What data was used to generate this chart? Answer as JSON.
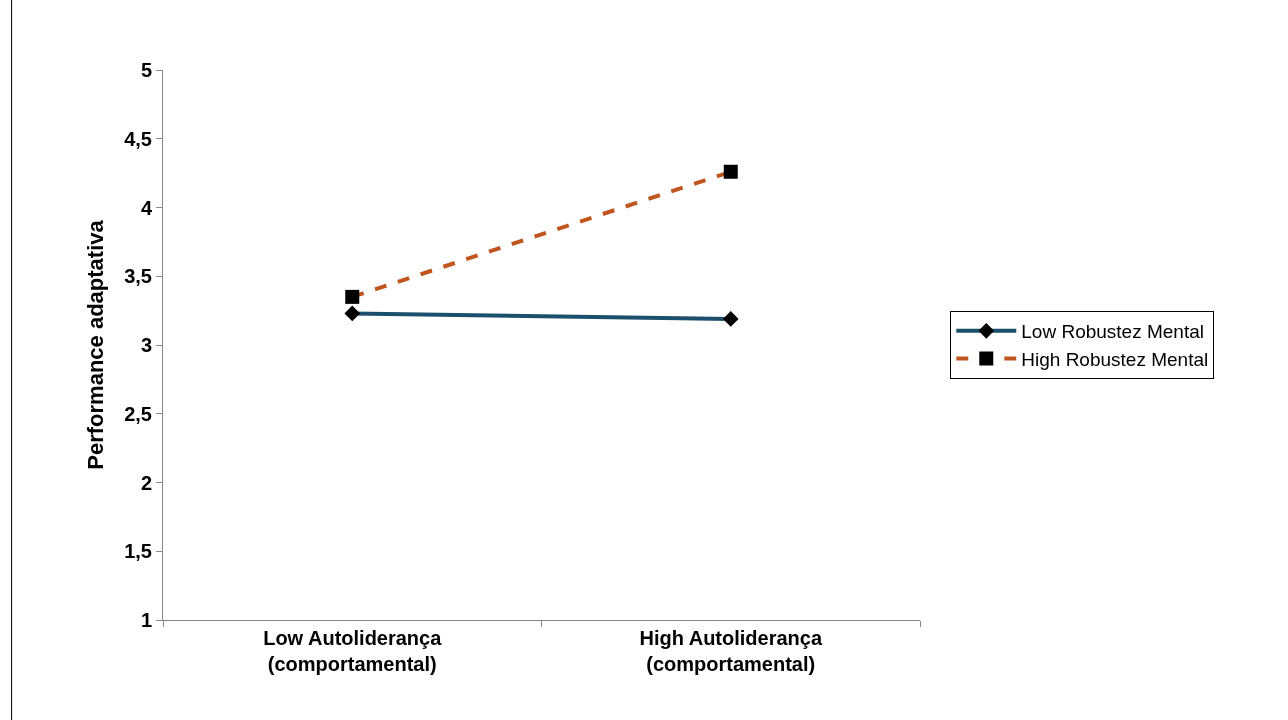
{
  "chart_data": {
    "type": "line",
    "ylabel": "Performance adaptativa",
    "categories": [
      "Low Autoliderança\n(comportamental)",
      "High Autoliderança\n(comportamental)"
    ],
    "series": [
      {
        "name": "Low Robustez Mental",
        "color": "#1b4f6b",
        "values": [
          3.23,
          3.19
        ],
        "marker": "diamond",
        "line_style": "solid"
      },
      {
        "name": "High Robustez Mental",
        "color": "#c0561e",
        "values": [
          3.35,
          4.26
        ],
        "marker": "square",
        "line_style": "dashed"
      }
    ],
    "ylim": [
      1,
      5
    ],
    "yticks": [
      1,
      {
        "value": 1.5,
        "label": "1,5"
      },
      2,
      {
        "value": 2.5,
        "label": "2,5"
      },
      3,
      {
        "value": 3.5,
        "label": "3,5"
      },
      4,
      {
        "value": 4.5,
        "label": "4,5"
      },
      5
    ],
    "grid": false,
    "legend": "right"
  }
}
